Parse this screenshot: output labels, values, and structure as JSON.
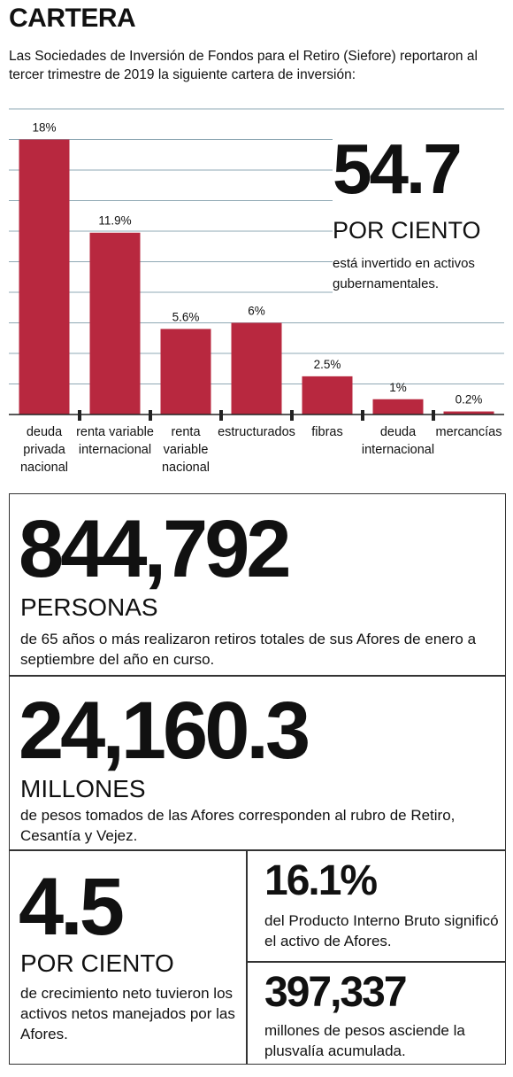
{
  "header": {
    "title": "CARTERA",
    "intro": "Las Sociedades de Inversión de Fondos para el Retiro (Siefore) reportaron al tercer trimestre de 2019 la siguiente cartera de inversión:"
  },
  "chart_data": {
    "type": "bar",
    "categories": [
      [
        "deuda",
        "privada",
        "nacional"
      ],
      [
        "renta variable",
        "internacional"
      ],
      [
        "renta",
        "variable",
        "nacional"
      ],
      [
        "estructurados"
      ],
      [
        "fibras"
      ],
      [
        "deuda",
        "internacional"
      ],
      [
        "mercancías"
      ]
    ],
    "values": [
      18,
      11.9,
      5.6,
      6,
      2.5,
      1,
      0.2
    ],
    "value_labels": [
      "18%",
      "11.9%",
      "5.6%",
      "6%",
      "2.5%",
      "1%",
      "0.2%"
    ],
    "ylim": [
      0,
      20
    ],
    "bar_color": "#b8283f",
    "grid": true,
    "grid_color": "#8fa8b4"
  },
  "highlight": {
    "number": "54.7",
    "unit": "POR CIENTO",
    "description": "está invertido en activos gubernamentales."
  },
  "stats": {
    "personas": {
      "number": "844,792",
      "unit": "PERSONAS",
      "description": "de 65 años o más realizaron retiros totales de sus Afores de enero a septiembre del año en curso."
    },
    "millones": {
      "number": "24,160.3",
      "unit": "MILLONES",
      "description": "de pesos tomados de las Afores corresponden al rubro de Retiro, Cesantía y Vejez."
    },
    "crecimiento": {
      "number": "4.5",
      "unit": "POR CIENTO",
      "description": "de crecimiento neto tuvieron los activos netos manejados por las Afores."
    },
    "pib": {
      "number": "16.1%",
      "description": "del Producto Interno Bruto significó el activo de Afores."
    },
    "plusvalia": {
      "number": "397,337",
      "description": "millones de pesos asciende la plusvalía acumulada."
    }
  }
}
